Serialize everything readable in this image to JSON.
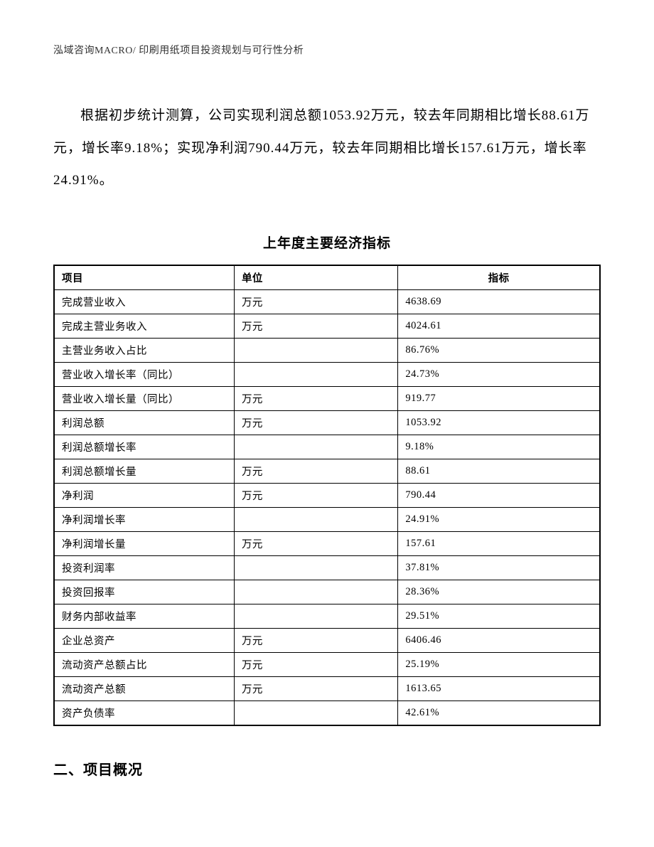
{
  "header": {
    "text": "泓域咨询MACRO/ 印刷用纸项目投资规划与可行性分析"
  },
  "paragraph": {
    "text": "根据初步统计测算，公司实现利润总额1053.92万元，较去年同期相比增长88.61万元，增长率9.18%；实现净利润790.44万元，较去年同期相比增长157.61万元，增长率24.91%。"
  },
  "table": {
    "title": "上年度主要经济指标",
    "columns": [
      "项目",
      "单位",
      "指标"
    ],
    "rows": [
      [
        "完成营业收入",
        "万元",
        "4638.69"
      ],
      [
        "完成主营业务收入",
        "万元",
        "4024.61"
      ],
      [
        "主营业务收入占比",
        "",
        "86.76%"
      ],
      [
        "营业收入增长率（同比）",
        "",
        "24.73%"
      ],
      [
        "营业收入增长量（同比）",
        "万元",
        "919.77"
      ],
      [
        "利润总额",
        "万元",
        "1053.92"
      ],
      [
        "利润总额增长率",
        "",
        "9.18%"
      ],
      [
        "利润总额增长量",
        "万元",
        "88.61"
      ],
      [
        "净利润",
        "万元",
        "790.44"
      ],
      [
        "净利润增长率",
        "",
        "24.91%"
      ],
      [
        "净利润增长量",
        "万元",
        "157.61"
      ],
      [
        "投资利润率",
        "",
        "37.81%"
      ],
      [
        "投资回报率",
        "",
        "28.36%"
      ],
      [
        "财务内部收益率",
        "",
        "29.51%"
      ],
      [
        "企业总资产",
        "万元",
        "6406.46"
      ],
      [
        "流动资产总额占比",
        "万元",
        "25.19%"
      ],
      [
        "流动资产总额",
        "万元",
        "1613.65"
      ],
      [
        "资产负债率",
        "",
        "42.61%"
      ]
    ]
  },
  "section": {
    "heading": "二、项目概况"
  }
}
